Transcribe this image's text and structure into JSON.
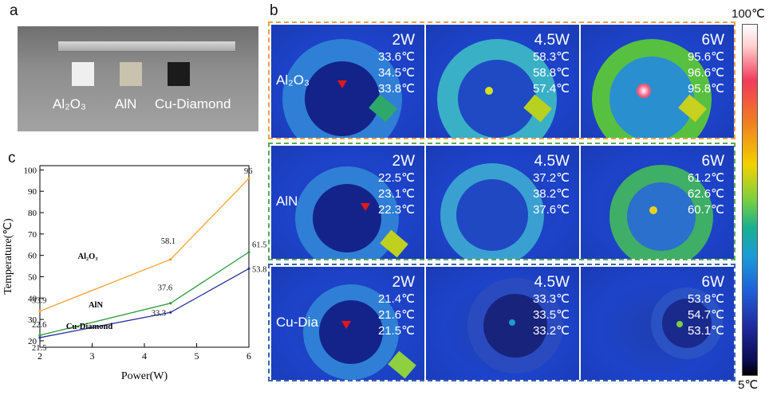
{
  "panel_labels": {
    "a": "a",
    "b": "b",
    "c": "c"
  },
  "panel_a": {
    "samples": [
      "Al₂O₃",
      "AlN",
      "Cu-Diamond"
    ]
  },
  "colorbar": {
    "max_label": "100℃",
    "min_label": "5℃"
  },
  "colors": {
    "al2o3": "#f7a033",
    "aln": "#2a9a3a",
    "cudia": "#2b2fa0",
    "border_al2o3": "#f0a040",
    "border_aln": "#5aa858",
    "border_cudia": "#3b62b0"
  },
  "thermal": [
    {
      "material": "Al₂O₃",
      "cells": [
        {
          "power": "2W",
          "temps": [
            "33.6℃",
            "34.5℃",
            "33.8℃"
          ]
        },
        {
          "power": "4.5W",
          "temps": [
            "58.3℃",
            "58.8℃",
            "57.4℃"
          ]
        },
        {
          "power": "6W",
          "temps": [
            "95.6℃",
            "96.6℃",
            "95.8℃"
          ]
        }
      ]
    },
    {
      "material": "AlN",
      "cells": [
        {
          "power": "2W",
          "temps": [
            "22.5℃",
            "23.1℃",
            "22.3℃"
          ]
        },
        {
          "power": "4.5W",
          "temps": [
            "37.2℃",
            "38.2℃",
            "37.6℃"
          ]
        },
        {
          "power": "6W",
          "temps": [
            "61.2℃",
            "62.6℃",
            "60.7℃"
          ]
        }
      ]
    },
    {
      "material": "Cu-Dia",
      "cells": [
        {
          "power": "2W",
          "temps": [
            "21.4℃",
            "21.6℃",
            "21.5℃"
          ]
        },
        {
          "power": "4.5W",
          "temps": [
            "33.3℃",
            "33.5℃",
            "33.2℃"
          ]
        },
        {
          "power": "6W",
          "temps": [
            "53.8℃",
            "54.7℃",
            "53.1℃"
          ]
        }
      ]
    }
  ],
  "chart_data": {
    "type": "line",
    "xlabel": "Power(W)",
    "ylabel": "Temperature(℃)",
    "xlim": [
      2,
      6
    ],
    "ylim": [
      17,
      102
    ],
    "xticks": [
      2,
      3,
      4,
      5,
      6
    ],
    "yticks": [
      20,
      30,
      40,
      50,
      60,
      70,
      80,
      90,
      100
    ],
    "x": [
      2,
      4.5,
      6
    ],
    "series": [
      {
        "name": "Al₂O₃",
        "values": [
          33.9,
          58.1,
          96
        ],
        "labels": [
          "33.9",
          "58.1",
          "96"
        ],
        "color": "#f7a033"
      },
      {
        "name": "AlN",
        "values": [
          22.6,
          37.6,
          61.5
        ],
        "labels": [
          "22.6",
          "37.6",
          "61.5"
        ],
        "color": "#2a9a3a"
      },
      {
        "name": "Cu-Diamond",
        "values": [
          21.5,
          33.3,
          53.8
        ],
        "labels": [
          "21.5",
          "33.3",
          "53.8"
        ],
        "color": "#2b2fa0"
      }
    ]
  }
}
